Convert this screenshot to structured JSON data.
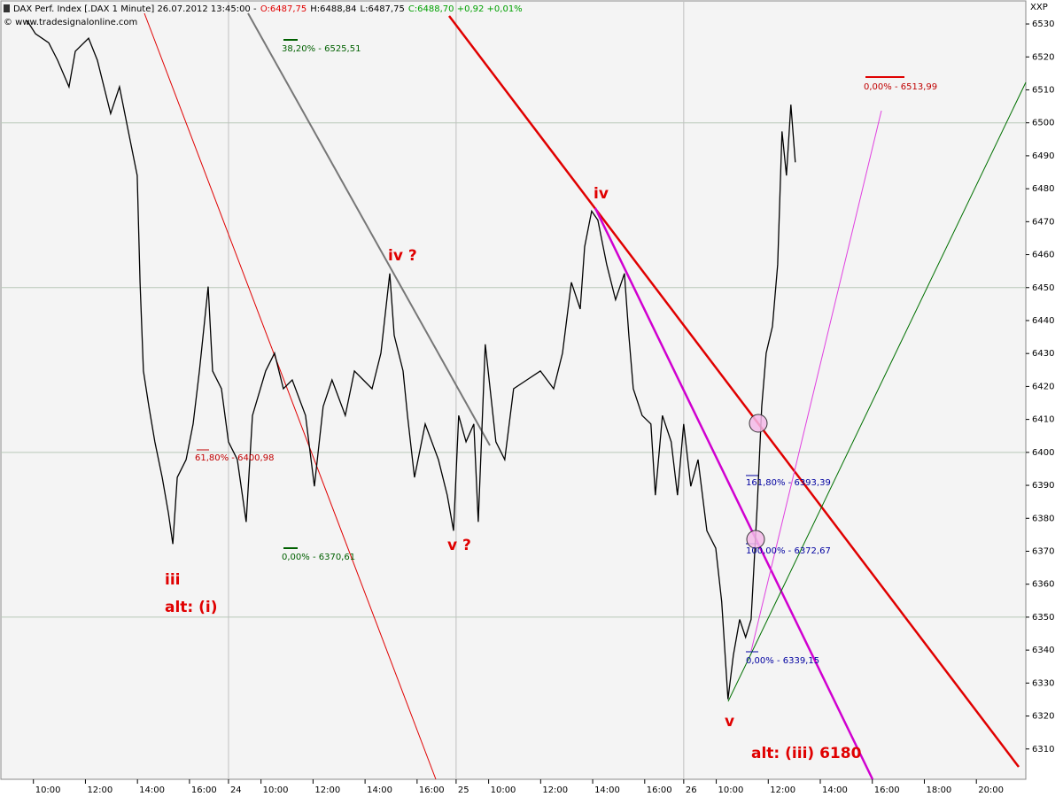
{
  "chart_data": {
    "type": "line",
    "title": "DAX Perf. Index [.DAX  1 Minute] 26.07.2012 13:45:00 -",
    "ohlc": [
      {
        "text": "O:6487,75",
        "color": "#e00000"
      },
      {
        "text": "H:6488,84",
        "color": "#000000"
      },
      {
        "text": "L:6487,75",
        "color": "#000000"
      },
      {
        "text": "C:6488,70 +0,92 +0,01%",
        "color": "#00a000"
      }
    ],
    "source": "© www.tradesignalonline.com",
    "corner_label": "XXP",
    "color": "#000000",
    "grid": true,
    "xlim": [
      0,
      39.4
    ],
    "ylim": [
      6300.8,
      6537
    ],
    "yticks": [
      6310,
      6320,
      6330,
      6340,
      6350,
      6360,
      6370,
      6380,
      6390,
      6400,
      6410,
      6420,
      6430,
      6440,
      6450,
      6460,
      6470,
      6480,
      6490,
      6500,
      6510,
      6520,
      6530
    ],
    "xticks": [
      {
        "value": 1.25,
        "label": "10:00"
      },
      {
        "value": 3.25,
        "label": "12:00"
      },
      {
        "value": 5.25,
        "label": "14:00"
      },
      {
        "value": 7.25,
        "label": "16:00"
      },
      {
        "value": 8.75,
        "label": "24"
      },
      {
        "value": 10,
        "label": "10:00"
      },
      {
        "value": 12,
        "label": "12:00"
      },
      {
        "value": 14,
        "label": "14:00"
      },
      {
        "value": 16,
        "label": "16:00"
      },
      {
        "value": 17.5,
        "label": "25"
      },
      {
        "value": 18.75,
        "label": "10:00"
      },
      {
        "value": 20.75,
        "label": "12:00"
      },
      {
        "value": 22.75,
        "label": "14:00"
      },
      {
        "value": 24.75,
        "label": "16:00"
      },
      {
        "value": 26.25,
        "label": "26"
      },
      {
        "value": 27.5,
        "label": "10:00"
      },
      {
        "value": 29.5,
        "label": "12:00"
      },
      {
        "value": 31.5,
        "label": "14:00"
      },
      {
        "value": 33.5,
        "label": "16:00"
      },
      {
        "value": 35.5,
        "label": "18:00"
      },
      {
        "value": 37.5,
        "label": "20:00"
      }
    ],
    "x": [
      1.0,
      1.33,
      1.84,
      2.18,
      2.62,
      2.86,
      3.37,
      3.71,
      4.22,
      4.56,
      4.9,
      5.24,
      5.35,
      5.48,
      5.69,
      5.92,
      6.2,
      6.44,
      6.61,
      6.78,
      7.12,
      7.39,
      7.63,
      7.97,
      8.14,
      8.48,
      8.75,
      9.09,
      9.43,
      9.67,
      10.18,
      10.52,
      10.86,
      11.2,
      11.71,
      12.05,
      12.39,
      12.73,
      13.24,
      13.59,
      13.93,
      14.27,
      14.61,
      14.95,
      15.12,
      15.46,
      15.63,
      15.9,
      16.31,
      16.82,
      17.16,
      17.4,
      17.6,
      17.88,
      18.18,
      18.35,
      18.62,
      19.03,
      19.37,
      19.71,
      20.22,
      20.74,
      21.25,
      21.59,
      21.93,
      22.27,
      22.44,
      22.71,
      22.95,
      23.29,
      23.63,
      23.97,
      24.14,
      24.31,
      24.65,
      24.99,
      25.16,
      25.43,
      25.77,
      26.01,
      26.25,
      26.52,
      26.8,
      27.14,
      27.48,
      27.71,
      27.95,
      28.16,
      28.4,
      28.63,
      28.84,
      29.08,
      29.25,
      29.42,
      29.66,
      29.86,
      30.03,
      30.2,
      30.37,
      30.54
    ],
    "values": [
      6531.1,
      6527.0,
      6524.3,
      6519.0,
      6510.9,
      6521.7,
      6525.7,
      6519.0,
      6502.8,
      6510.9,
      6497.4,
      6484.0,
      6451.6,
      6424.7,
      6413.9,
      6403.2,
      6392.4,
      6381.6,
      6372.2,
      6392.4,
      6397.8,
      6408.6,
      6424.7,
      6450.3,
      6424.7,
      6419.3,
      6403.2,
      6397.8,
      6378.9,
      6411.2,
      6424.7,
      6430.1,
      6419.3,
      6422.0,
      6411.2,
      6389.7,
      6413.9,
      6422.0,
      6411.2,
      6424.7,
      6422.0,
      6419.3,
      6430.1,
      6454.3,
      6435.5,
      6424.7,
      6411.2,
      6392.4,
      6408.6,
      6397.8,
      6387.0,
      6376.2,
      6411.2,
      6403.2,
      6408.6,
      6378.9,
      6432.8,
      6403.2,
      6397.8,
      6419.3,
      6422.0,
      6424.7,
      6419.3,
      6430.1,
      6451.6,
      6443.5,
      6462.4,
      6473.2,
      6470.5,
      6457.0,
      6446.3,
      6454.3,
      6435.5,
      6419.3,
      6411.2,
      6408.6,
      6387.0,
      6411.2,
      6403.2,
      6387.0,
      6408.6,
      6389.7,
      6397.8,
      6376.2,
      6370.9,
      6354.7,
      6325.1,
      6338.5,
      6349.3,
      6343.9,
      6349.3,
      6384.3,
      6413.9,
      6430.1,
      6438.2,
      6457.0,
      6497.4,
      6484.0,
      6505.5,
      6488.0
    ],
    "annotations": [
      {
        "text": "38,20% - 6525,51",
        "color": "#006000"
      },
      {
        "text": "0,00% - 6370,61",
        "color": "#006000"
      },
      {
        "text": "61,80% - 6400,98",
        "color": "#c00000"
      },
      {
        "text": "0,00% - 6513,99",
        "color": "#c00000"
      },
      {
        "text": "161,80% - 6393,39",
        "color": "#0000a0"
      },
      {
        "text": "100,00% - 6372,67",
        "color": "#0000a0"
      },
      {
        "text": "0,00% - 6339,15",
        "color": "#0000a0"
      },
      {
        "text": "iii",
        "color": "#e00000"
      },
      {
        "text": "alt: (i)",
        "color": "#e00000"
      },
      {
        "text": "iv ?",
        "color": "#e00000"
      },
      {
        "text": "v ?",
        "color": "#e00000"
      },
      {
        "text": "iv",
        "color": "#e00000"
      },
      {
        "text": "v",
        "color": "#e00000"
      },
      {
        "text": "alt: (iii) 6180",
        "color": "#e00000"
      }
    ]
  }
}
